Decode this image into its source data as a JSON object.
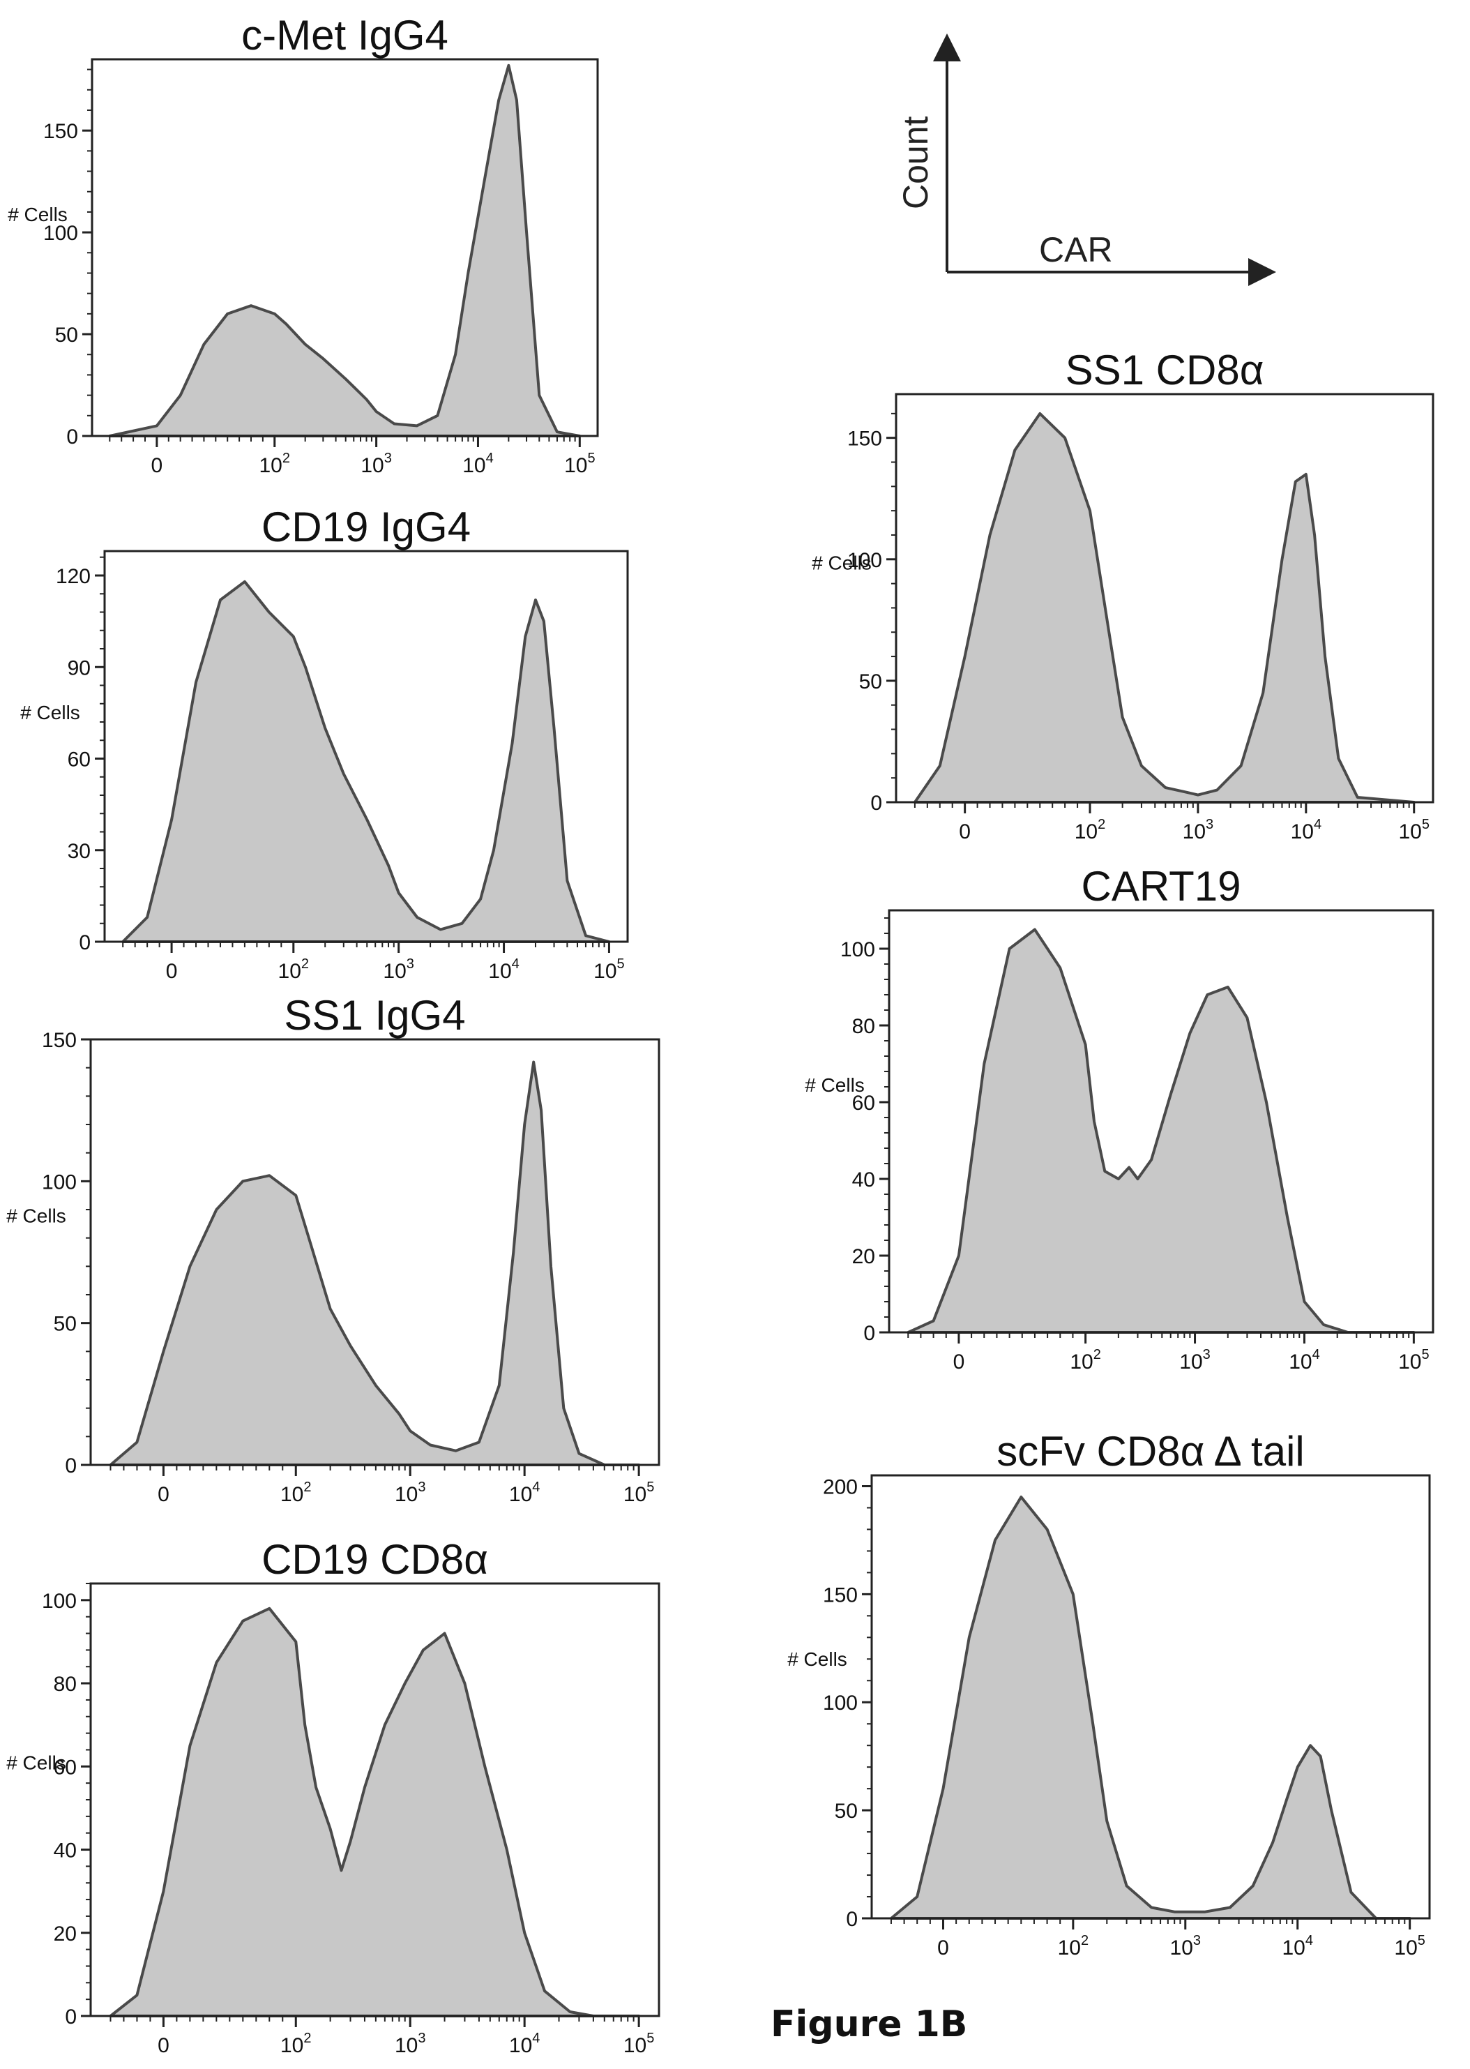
{
  "figure_label": "Figure 1B",
  "legend_key": {
    "y_label": "Count",
    "x_label": "CAR"
  },
  "chart_data": [
    {
      "type": "area",
      "title": "c-Met IgG4",
      "ylabel": "# Cells",
      "xlabel": "",
      "yticks": [
        0,
        50,
        100,
        150
      ],
      "ylim": [
        0,
        185
      ],
      "x_ticks": [
        "0",
        "10^2",
        "10^3",
        "10^4",
        "10^5"
      ],
      "x": [
        -40,
        0,
        20,
        40,
        60,
        80,
        100,
        130,
        200,
        300,
        500,
        800,
        1000,
        1500,
        2500,
        4000,
        6000,
        8000,
        12000,
        16000,
        20000,
        24000,
        30000,
        40000,
        60000,
        100000
      ],
      "values": [
        0,
        5,
        20,
        45,
        60,
        64,
        60,
        55,
        45,
        38,
        28,
        18,
        12,
        6,
        5,
        10,
        40,
        80,
        130,
        165,
        182,
        165,
        100,
        20,
        2,
        0
      ]
    },
    {
      "type": "area",
      "title": "CD19 IgG4",
      "ylabel": "# Cells",
      "xlabel": "",
      "yticks": [
        0,
        30,
        60,
        90,
        120
      ],
      "ylim": [
        0,
        128
      ],
      "x_ticks": [
        "0",
        "10^2",
        "10^3",
        "10^4",
        "10^5"
      ],
      "x": [
        -40,
        -20,
        0,
        20,
        40,
        60,
        80,
        100,
        130,
        200,
        300,
        500,
        800,
        1000,
        1500,
        2500,
        4000,
        6000,
        8000,
        12000,
        16000,
        20000,
        24000,
        30000,
        40000,
        60000,
        100000
      ],
      "values": [
        0,
        8,
        40,
        85,
        112,
        118,
        108,
        100,
        90,
        70,
        55,
        40,
        25,
        16,
        8,
        4,
        6,
        14,
        30,
        65,
        100,
        112,
        105,
        70,
        20,
        2,
        0
      ]
    },
    {
      "type": "area",
      "title": "SS1 IgG4",
      "ylabel": "# Cells",
      "xlabel": "",
      "yticks": [
        0,
        50,
        100,
        150
      ],
      "ylim": [
        0,
        150
      ],
      "x_ticks": [
        "0",
        "10^2",
        "10^3",
        "10^4",
        "10^5"
      ],
      "x": [
        -40,
        -20,
        0,
        20,
        40,
        60,
        80,
        100,
        130,
        200,
        300,
        500,
        800,
        1000,
        1500,
        2500,
        4000,
        6000,
        8000,
        10000,
        12000,
        14000,
        17000,
        22000,
        30000,
        50000,
        100000
      ],
      "values": [
        0,
        8,
        40,
        70,
        90,
        100,
        102,
        95,
        80,
        55,
        42,
        28,
        18,
        12,
        7,
        5,
        8,
        28,
        75,
        120,
        142,
        125,
        70,
        20,
        4,
        0,
        0
      ]
    },
    {
      "type": "area",
      "title": "CD19 CD8α",
      "ylabel": "# Cells",
      "xlabel": "",
      "yticks": [
        0,
        20,
        40,
        60,
        80,
        100
      ],
      "ylim": [
        0,
        104
      ],
      "x_ticks": [
        "0",
        "10^2",
        "10^3",
        "10^4",
        "10^5"
      ],
      "x": [
        -40,
        -20,
        0,
        20,
        40,
        60,
        80,
        100,
        120,
        150,
        200,
        250,
        300,
        400,
        600,
        900,
        1300,
        2000,
        3000,
        4500,
        7000,
        10000,
        15000,
        25000,
        40000,
        100000
      ],
      "values": [
        0,
        5,
        30,
        65,
        85,
        95,
        98,
        90,
        70,
        55,
        45,
        35,
        42,
        55,
        70,
        80,
        88,
        92,
        80,
        60,
        40,
        20,
        6,
        1,
        0,
        0
      ]
    },
    {
      "type": "area",
      "title": "SS1 CD8α",
      "ylabel": "# Cells",
      "xlabel": "",
      "yticks": [
        0,
        50,
        100,
        150
      ],
      "ylim": [
        0,
        168
      ],
      "x_ticks": [
        "0",
        "10^2",
        "10^3",
        "10^4",
        "10^5"
      ],
      "x": [
        -40,
        -20,
        0,
        20,
        40,
        60,
        80,
        100,
        150,
        200,
        300,
        500,
        800,
        1000,
        1500,
        2500,
        4000,
        6000,
        8000,
        10000,
        12000,
        15000,
        20000,
        30000,
        100000
      ],
      "values": [
        0,
        15,
        60,
        110,
        145,
        160,
        150,
        120,
        70,
        35,
        15,
        6,
        4,
        3,
        5,
        15,
        45,
        100,
        132,
        135,
        110,
        60,
        18,
        2,
        0
      ]
    },
    {
      "type": "area",
      "title": "CART19",
      "ylabel": "# Cells",
      "xlabel": "",
      "yticks": [
        0,
        20,
        40,
        60,
        80,
        100
      ],
      "ylim": [
        0,
        110
      ],
      "x_ticks": [
        "0",
        "10^2",
        "10^3",
        "10^4",
        "10^5"
      ],
      "x": [
        -40,
        -20,
        0,
        20,
        40,
        60,
        80,
        100,
        120,
        150,
        200,
        250,
        300,
        400,
        600,
        900,
        1300,
        2000,
        3000,
        4500,
        7000,
        10000,
        15000,
        25000,
        100000
      ],
      "values": [
        0,
        3,
        20,
        70,
        100,
        105,
        95,
        75,
        55,
        42,
        40,
        43,
        40,
        45,
        62,
        78,
        88,
        90,
        82,
        60,
        30,
        8,
        2,
        0,
        0
      ]
    },
    {
      "type": "area",
      "title": "scFv CD8α Δ tail",
      "ylabel": "# Cells",
      "xlabel": "",
      "yticks": [
        0,
        50,
        100,
        150,
        200
      ],
      "ylim": [
        0,
        205
      ],
      "x_ticks": [
        "0",
        "10^2",
        "10^3",
        "10^4",
        "10^5"
      ],
      "x": [
        -40,
        -20,
        0,
        20,
        40,
        60,
        80,
        100,
        150,
        200,
        300,
        500,
        800,
        1000,
        1500,
        2500,
        4000,
        6000,
        8000,
        10000,
        13000,
        16000,
        20000,
        30000,
        50000,
        100000
      ],
      "values": [
        0,
        10,
        60,
        130,
        175,
        195,
        180,
        150,
        90,
        45,
        15,
        5,
        3,
        3,
        3,
        5,
        15,
        35,
        55,
        70,
        80,
        75,
        50,
        12,
        0,
        0
      ]
    }
  ]
}
